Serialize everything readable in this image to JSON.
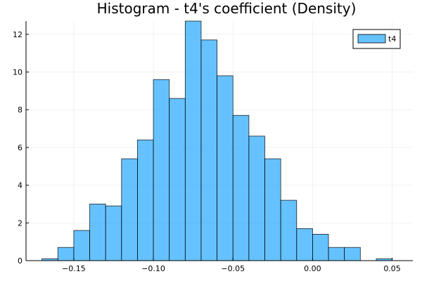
{
  "chart_data": {
    "type": "bar",
    "title": "Histogram - t4's coefficient (Density)",
    "xlabel": "",
    "ylabel": "",
    "xlim": [
      -0.18,
      0.063
    ],
    "ylim": [
      0,
      12.7
    ],
    "bin_width": 0.01,
    "bins": [
      {
        "start": -0.17,
        "end": -0.16,
        "value": 0.1
      },
      {
        "start": -0.16,
        "end": -0.15,
        "value": 0.7
      },
      {
        "start": -0.15,
        "end": -0.14,
        "value": 1.6
      },
      {
        "start": -0.14,
        "end": -0.13,
        "value": 3.0
      },
      {
        "start": -0.13,
        "end": -0.12,
        "value": 2.9
      },
      {
        "start": -0.12,
        "end": -0.11,
        "value": 5.4
      },
      {
        "start": -0.11,
        "end": -0.1,
        "value": 6.4
      },
      {
        "start": -0.1,
        "end": -0.09,
        "value": 9.6
      },
      {
        "start": -0.09,
        "end": -0.08,
        "value": 8.6
      },
      {
        "start": -0.08,
        "end": -0.07,
        "value": 12.7
      },
      {
        "start": -0.07,
        "end": -0.06,
        "value": 11.7
      },
      {
        "start": -0.06,
        "end": -0.05,
        "value": 9.8
      },
      {
        "start": -0.05,
        "end": -0.04,
        "value": 7.7
      },
      {
        "start": -0.04,
        "end": -0.03,
        "value": 6.6
      },
      {
        "start": -0.03,
        "end": -0.02,
        "value": 5.4
      },
      {
        "start": -0.02,
        "end": -0.01,
        "value": 3.2
      },
      {
        "start": -0.01,
        "end": 0.0,
        "value": 1.7
      },
      {
        "start": 0.0,
        "end": 0.01,
        "value": 1.4
      },
      {
        "start": 0.01,
        "end": 0.02,
        "value": 0.7
      },
      {
        "start": 0.02,
        "end": 0.03,
        "value": 0.7
      },
      {
        "start": 0.04,
        "end": 0.05,
        "value": 0.1
      }
    ],
    "x_ticks": [
      -0.15,
      -0.1,
      -0.05,
      0.0,
      0.05
    ],
    "x_tick_labels": [
      "−0.15",
      "−0.10",
      "−0.05",
      "0.00",
      "0.05"
    ],
    "y_ticks": [
      0,
      2,
      4,
      6,
      8,
      10,
      12
    ],
    "y_tick_labels": [
      "0",
      "2",
      "4",
      "6",
      "8",
      "10",
      "12"
    ],
    "series": [
      {
        "name": "t4",
        "color": "#0099ff",
        "opacity": 0.6
      }
    ],
    "legend_position": "top-right",
    "grid": true
  }
}
